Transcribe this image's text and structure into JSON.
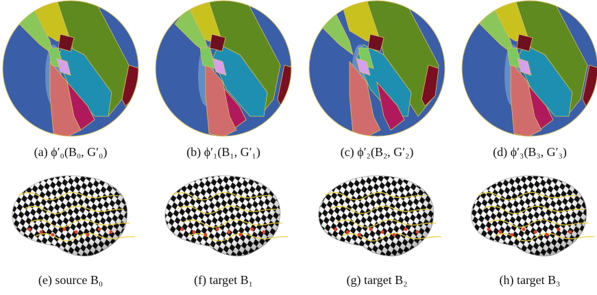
{
  "figure": {
    "top_captions": [
      "(a) ϕ′₀(B₀, G′₀)",
      "(b) ϕ′₁(B₁, G′₁)",
      "(c) ϕ′₂(B₂, G′₂)",
      "(d) ϕ′₃(B₃, G′₃)"
    ],
    "bottom_captions": [
      "(e) source B₀",
      "(f) target B₁",
      "(g) target B₂",
      "(h) target B₃"
    ]
  }
}
